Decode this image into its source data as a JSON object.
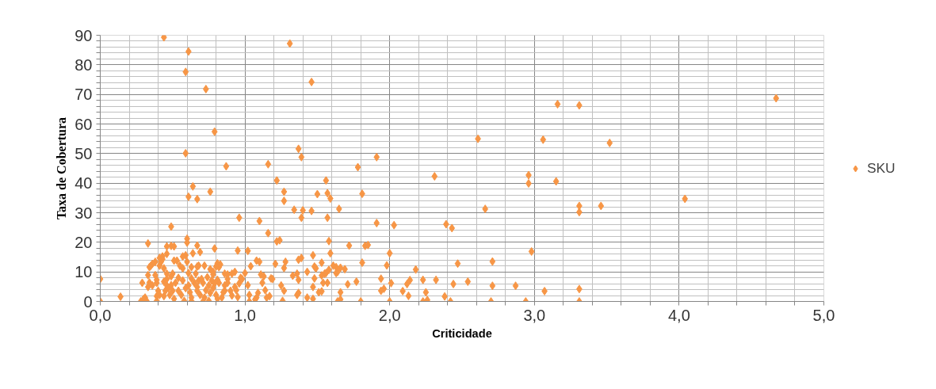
{
  "chart_data": {
    "type": "scatter",
    "xlabel": "Criticidade",
    "ylabel": "Taxa de Cobertura",
    "xlim": [
      0,
      5
    ],
    "ylim": [
      0,
      90
    ],
    "xticks": [
      {
        "value": 0,
        "label": "0,0"
      },
      {
        "value": 1,
        "label": "1,0"
      },
      {
        "value": 2,
        "label": "2,0"
      },
      {
        "value": 3,
        "label": "3,0"
      },
      {
        "value": 4,
        "label": "4,0"
      },
      {
        "value": 5,
        "label": "5,0"
      }
    ],
    "yticks": [
      0,
      10,
      20,
      30,
      40,
      50,
      60,
      70,
      80,
      90
    ],
    "grid": true,
    "legend": "right",
    "marker": "diamond",
    "series": [
      {
        "name": "SKU",
        "color": "#f79646",
        "x": [
          0.44,
          1.31,
          0.61,
          0.59,
          1.46,
          0.73,
          0.79,
          0.59,
          1.37,
          1.39,
          1.91,
          0.87,
          1.16,
          1.78,
          1.22,
          1.56,
          3.16,
          3.31,
          4.67,
          2.61,
          3.06,
          3.52,
          2.31,
          2.96,
          2.96,
          3.15,
          4.04,
          2.66,
          3.31,
          3.46,
          3.31,
          2.03,
          2.39,
          2.43,
          2.0,
          2.98,
          1.98,
          2.47,
          2.71,
          2.18,
          1.94,
          2.23,
          2.32,
          2.54,
          2.44,
          2.01,
          2.14,
          2.12,
          1.96,
          2.71,
          2.87,
          2.09,
          2.25,
          2.13,
          2.38,
          3.07,
          3.31,
          2.0,
          2.23,
          2.26,
          2.42,
          2.7,
          2.94,
          3.31,
          0.64,
          0.76,
          0.61,
          0.67,
          1.27,
          1.27,
          1.5,
          1.57,
          1.59,
          1.81,
          1.34,
          1.4,
          1.46,
          1.39,
          1.57,
          1.65,
          1.91,
          0.96,
          1.1,
          1.16,
          0.49,
          0.33,
          0.49,
          0.46,
          0.51,
          0.6,
          0.6,
          0.67,
          0.69,
          0.64,
          0.79,
          0.95,
          1.02,
          1.22,
          1.24,
          1.58,
          1.72,
          1.83,
          1.85,
          1.59,
          1.47,
          1.39,
          1.37,
          1.28,
          1.53,
          1.81,
          1.21,
          1.1,
          1.08,
          1.04,
          1.27,
          1.49,
          1.48,
          1.61,
          1.63,
          1.66,
          1.69,
          1.43,
          1.56,
          1.58,
          1.36,
          1.33,
          1.37,
          1.53,
          1.55,
          1.48,
          1.63,
          1.64,
          1.77,
          1.71,
          1.57,
          1.54,
          1.47,
          1.53,
          1.51,
          1.66,
          1.94,
          1.66,
          1.64,
          1.8,
          1.43,
          1.47,
          1.36,
          1.37,
          1.27,
          1.26,
          1.19,
          1.18,
          1.11,
          1.13,
          1.14,
          1.15,
          1.17,
          1.09,
          1.08,
          1.03,
          1.07,
          1.02,
          1.0,
          0.97,
          0.98,
          0.96,
          0.93,
          0.94,
          0.9,
          0.95,
          0.91,
          0.86,
          0.86,
          0.88,
          0.91,
          0.93,
          0.83,
          0.81,
          0.82,
          0.8,
          0.78,
          0.78,
          0.81,
          0.77,
          0.79,
          0.82,
          0.75,
          0.78,
          0.73,
          0.76,
          0.8,
          0.84,
          0.75,
          0.72,
          0.69,
          0.67,
          0.67,
          0.71,
          0.68,
          0.66,
          0.67,
          0.68,
          0.63,
          0.6,
          0.57,
          0.59,
          0.53,
          0.51,
          0.55,
          0.57,
          0.61,
          0.63,
          0.65,
          0.61,
          0.59,
          0.62,
          0.63,
          0.58,
          0.63,
          0.56,
          0.54,
          0.57,
          0.54,
          0.5,
          0.49,
          0.52,
          0.49,
          0.47,
          0.5,
          0.48,
          0.51,
          0.44,
          0.45,
          0.46,
          0.44,
          0.46,
          0.46,
          0.44,
          0.41,
          0.42,
          0.43,
          0.38,
          0.36,
          0.34,
          0.35,
          0.33,
          0.34,
          0.29,
          0.33,
          0.36,
          0.39,
          0.39,
          0.38,
          0.4,
          0.41,
          0.39,
          0.39,
          0.31,
          0.3,
          0.28,
          0.32,
          0.14,
          0.0,
          0.0,
          0.85,
          0.86,
          0.88,
          0.81,
          0.71,
          0.7,
          0.74,
          0.72,
          0.76,
          0.46,
          0.41,
          0.43,
          0.88,
          1.03,
          1.12,
          1.25
        ],
        "values": [
          89.3,
          87.2,
          84.5,
          77.6,
          74.2,
          71.8,
          57.4,
          50.1,
          51.6,
          48.8,
          48.8,
          45.7,
          46.4,
          45.4,
          40.9,
          40.9,
          66.7,
          66.3,
          68.7,
          55.0,
          54.7,
          53.6,
          42.3,
          42.7,
          39.9,
          40.6,
          34.7,
          31.3,
          32.3,
          32.3,
          30.2,
          25.8,
          26.1,
          24.8,
          16.3,
          16.9,
          12.2,
          12.8,
          13.5,
          10.8,
          7.7,
          7.3,
          7.3,
          6.7,
          5.9,
          6.2,
          7.2,
          5.9,
          4.3,
          5.3,
          5.3,
          3.5,
          3.1,
          1.9,
          1.7,
          3.5,
          4.2,
          0,
          0,
          0.5,
          0,
          0,
          0,
          0,
          38.9,
          37.1,
          35.4,
          34.6,
          37.1,
          34.0,
          36.3,
          36.6,
          34.8,
          36.4,
          31.0,
          30.8,
          30.6,
          28.3,
          28.3,
          31.3,
          26.5,
          28.3,
          27.2,
          23.1,
          25.3,
          19.6,
          18.8,
          18.6,
          18.6,
          21.2,
          19.9,
          18.9,
          16.7,
          16.3,
          17.9,
          17.2,
          17.1,
          20.3,
          20.7,
          20.4,
          18.9,
          18.8,
          19.1,
          16.3,
          15.6,
          14.7,
          14.1,
          13.4,
          13.1,
          13.1,
          12.7,
          13.4,
          13.8,
          11.9,
          11.3,
          11.2,
          11.8,
          12.1,
          11.6,
          11.4,
          10.9,
          10.0,
          9.6,
          10.7,
          9.4,
          8.7,
          7.3,
          8.8,
          9.4,
          7.8,
          9.6,
          10.0,
          6.7,
          5.8,
          6.3,
          6.3,
          4.9,
          3.4,
          3.1,
          3.1,
          3.6,
          0.7,
          0,
          0,
          1.3,
          0.9,
          2.2,
          2.9,
          3.6,
          0.2,
          7.6,
          7.8,
          9.1,
          8.5,
          3.8,
          1.3,
          1.8,
          2.9,
          1.3,
          0,
          0.7,
          5.5,
          9.6,
          8.0,
          7.6,
          6.1,
          4.9,
          3.8,
          3.6,
          1.5,
          2.0,
          3.6,
          9.4,
          9.1,
          9.4,
          10.0,
          12.5,
          12.9,
          11.6,
          11.8,
          10.0,
          9.1,
          7.3,
          7.1,
          6.1,
          6.3,
          5.4,
          4.5,
          3.8,
          2.9,
          2.2,
          1.3,
          0.2,
          1.3,
          2.2,
          3.6,
          4.9,
          6.3,
          7.1,
          9.4,
          11.8,
          12.1,
          11.6,
          13.4,
          15.2,
          15.6,
          13.8,
          13.8,
          12.1,
          11.2,
          9.6,
          7.8,
          6.3,
          5.4,
          4.5,
          3.1,
          1.3,
          0.2,
          0.2,
          2.2,
          3.6,
          7.1,
          8.0,
          9.4,
          8.5,
          6.3,
          5.5,
          4.5,
          3.6,
          2.2,
          0.9,
          1.8,
          3.6,
          5.4,
          6.7,
          7.6,
          9.4,
          11.2,
          12.1,
          13.4,
          14.3,
          13.4,
          12.7,
          11.6,
          12.1,
          8.9,
          6.4,
          6.3,
          4.9,
          5.4,
          6.3,
          7.3,
          8.9,
          3.6,
          2.2,
          1.8,
          0.2,
          1.3,
          0.9,
          0,
          0.2,
          1.6,
          0,
          7.6,
          3.1,
          5.4,
          6.3,
          0.9,
          0,
          7.6,
          8.2,
          12.1,
          10.9,
          16.1,
          14.7,
          15.2,
          7.6,
          2.2,
          6.3,
          5.4
        ]
      }
    ]
  }
}
